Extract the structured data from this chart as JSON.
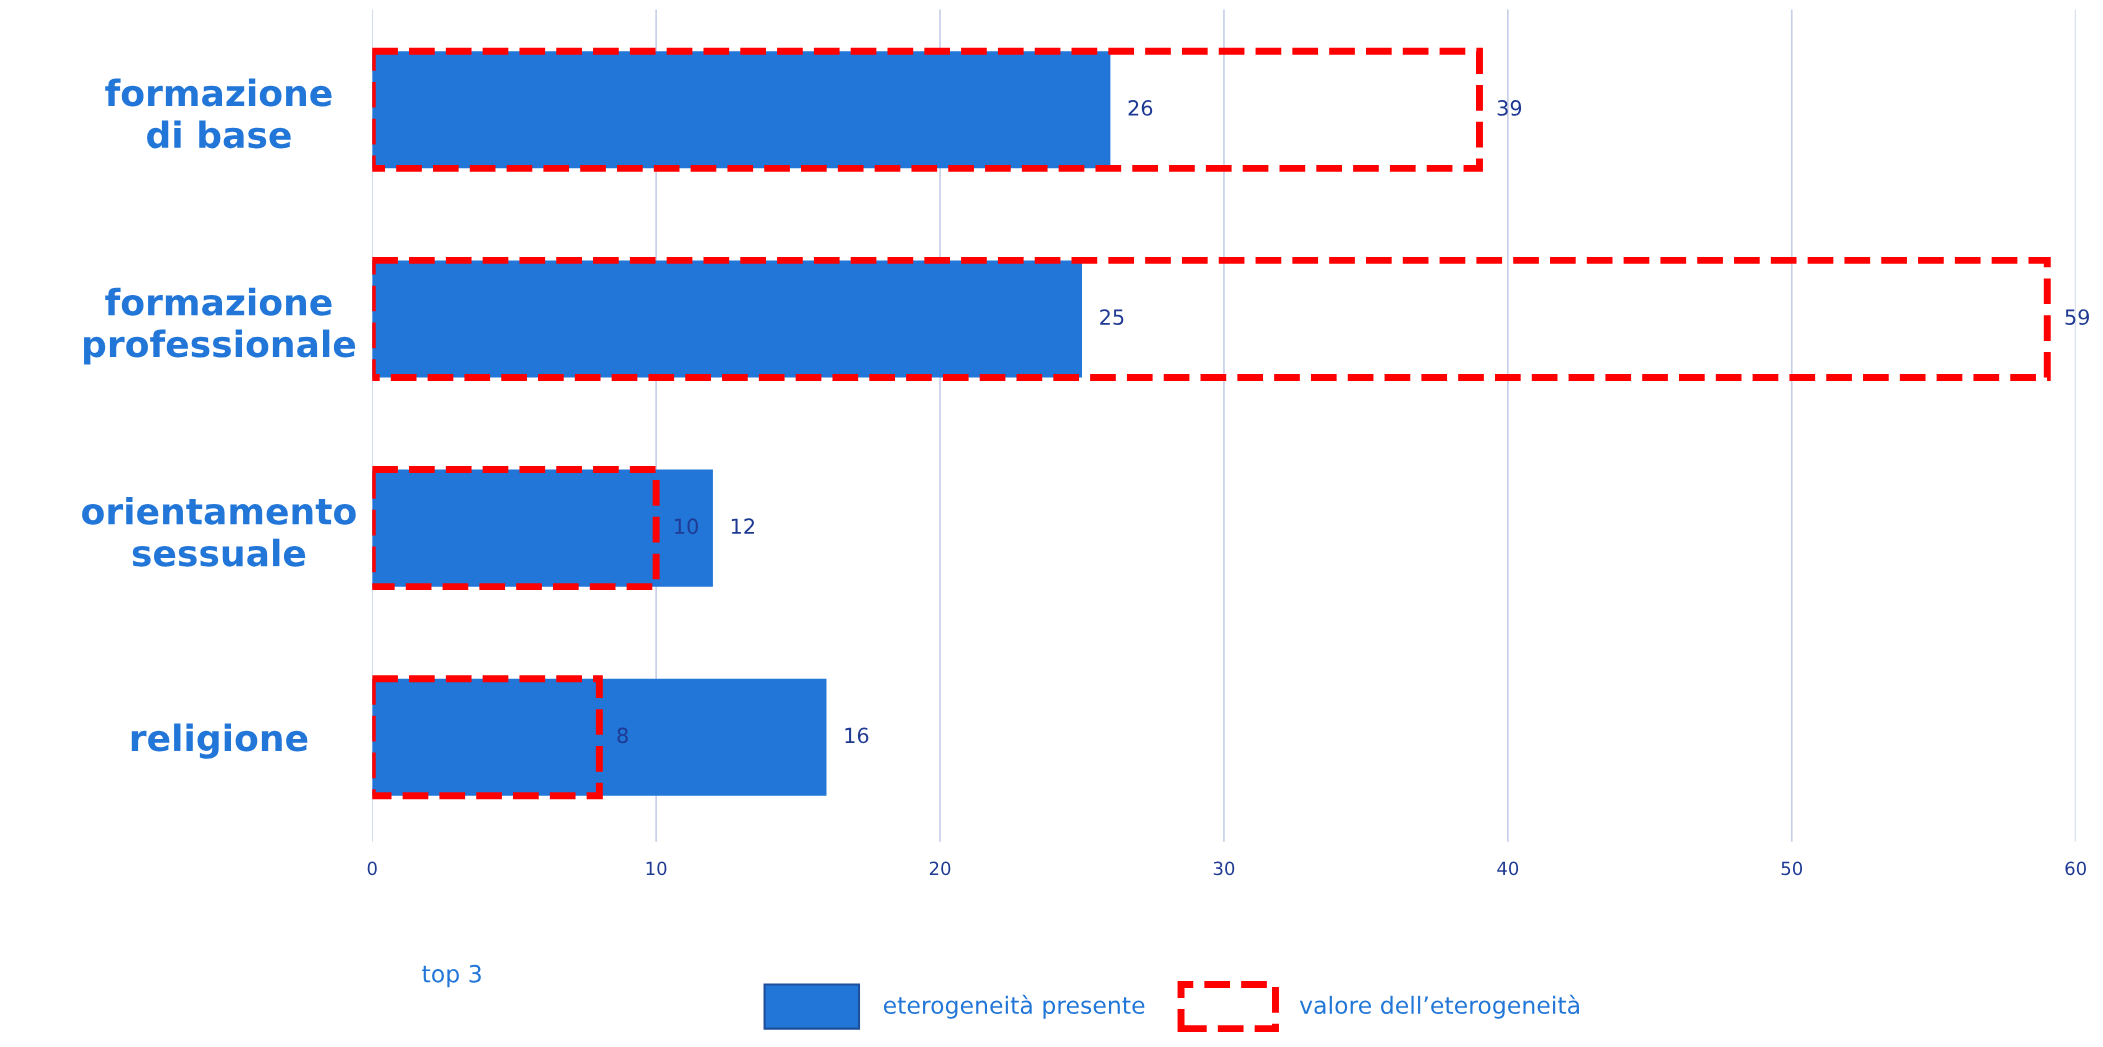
{
  "chart_data": {
    "type": "bar",
    "orientation": "horizontal",
    "categories": [
      "formazione\ndi base",
      "formazione\nprofessionale",
      "orientamento\nsessuale",
      "religione"
    ],
    "series": [
      {
        "name": "eterogeneità presente",
        "color": "#2176d8",
        "values": [
          26,
          25,
          12,
          16
        ]
      },
      {
        "name": "valore dell’eterogeneità",
        "color": "#ff0000",
        "line_style": "dashed",
        "values": [
          39,
          59,
          10,
          8
        ]
      }
    ],
    "xlim": [
      0,
      60
    ],
    "xticks": [
      0,
      10,
      20,
      30,
      40,
      50,
      60
    ],
    "grid": "x",
    "data_labels": true,
    "legend": "bottom",
    "legend_title": "top 3"
  }
}
